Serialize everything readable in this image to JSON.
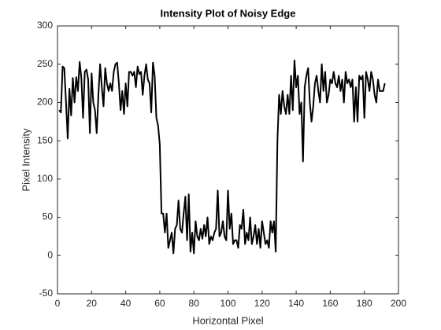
{
  "chart_data": {
    "type": "line",
    "title": "Intensity Plot of Noisy Edge",
    "xlabel": "Horizontal Pixel",
    "ylabel": "Pixel Intensity",
    "x": [
      1,
      2,
      3,
      4,
      5,
      6,
      7,
      8,
      9,
      10,
      11,
      12,
      13,
      14,
      15,
      16,
      17,
      18,
      19,
      20,
      21,
      22,
      23,
      24,
      25,
      26,
      27,
      28,
      29,
      30,
      31,
      32,
      33,
      34,
      35,
      36,
      37,
      38,
      39,
      40,
      41,
      42,
      43,
      44,
      45,
      46,
      47,
      48,
      49,
      50,
      51,
      52,
      53,
      54,
      55,
      56,
      57,
      58,
      59,
      60,
      61,
      62,
      63,
      64,
      65,
      66,
      67,
      68,
      69,
      70,
      71,
      72,
      73,
      74,
      75,
      76,
      77,
      78,
      79,
      80,
      81,
      82,
      83,
      84,
      85,
      86,
      87,
      88,
      89,
      90,
      91,
      92,
      93,
      94,
      95,
      96,
      97,
      98,
      99,
      100,
      101,
      102,
      103,
      104,
      105,
      106,
      107,
      108,
      109,
      110,
      111,
      112,
      113,
      114,
      115,
      116,
      117,
      118,
      119,
      120,
      121,
      122,
      123,
      124,
      125,
      126,
      127,
      128,
      129,
      130,
      131,
      132,
      133,
      134,
      135,
      136,
      137,
      138,
      139,
      140,
      141,
      142,
      143,
      144,
      145,
      146,
      147,
      148,
      149,
      150,
      151,
      152,
      153,
      154,
      155,
      156,
      157,
      158,
      159,
      160,
      161,
      162,
      163,
      164,
      165,
      166,
      167,
      168,
      169,
      170,
      171,
      172,
      173,
      174,
      175,
      176,
      177,
      178,
      179,
      180,
      181,
      182,
      183,
      184,
      185,
      186,
      187,
      188,
      189,
      190,
      191,
      192
    ],
    "series": [
      {
        "color": "#000000",
        "values": [
          190,
          187,
          247,
          245,
          200,
          153,
          218,
          183,
          232,
          200,
          233,
          215,
          253,
          232,
          180,
          240,
          243,
          230,
          160,
          238,
          200,
          190,
          160,
          210,
          250,
          220,
          195,
          245,
          225,
          215,
          225,
          215,
          240,
          250,
          252,
          225,
          190,
          215,
          185,
          225,
          195,
          240,
          240,
          235,
          240,
          220,
          247,
          237,
          240,
          210,
          235,
          250,
          230,
          225,
          187,
          252,
          235,
          180,
          170,
          145,
          55,
          55,
          30,
          55,
          10,
          20,
          30,
          3,
          35,
          40,
          72,
          35,
          30,
          55,
          77,
          20,
          80,
          5,
          30,
          3,
          45,
          25,
          20,
          35,
          22,
          40,
          25,
          50,
          15,
          25,
          20,
          30,
          35,
          85,
          25,
          30,
          45,
          25,
          20,
          85,
          35,
          55,
          15,
          20,
          20,
          10,
          40,
          35,
          60,
          15,
          30,
          20,
          50,
          15,
          25,
          40,
          15,
          35,
          10,
          45,
          30,
          15,
          20,
          10,
          45,
          30,
          45,
          5,
          150,
          210,
          185,
          215,
          195,
          185,
          210,
          185,
          235,
          190,
          255,
          220,
          235,
          185,
          200,
          123,
          220,
          235,
          245,
          200,
          175,
          195,
          225,
          235,
          215,
          200,
          250,
          215,
          240,
          200,
          210,
          230,
          225,
          240,
          225,
          220,
          235,
          215,
          230,
          200,
          240,
          225,
          230,
          220,
          230,
          175,
          220,
          175,
          235,
          230,
          235,
          180,
          240,
          230,
          215,
          240,
          230,
          210,
          200,
          230,
          215,
          215,
          215,
          225
        ]
      }
    ],
    "xlim": [
      0,
      200
    ],
    "xticks": [
      0,
      20,
      40,
      60,
      80,
      100,
      120,
      140,
      160,
      180,
      200
    ],
    "ylim": [
      -50,
      300
    ],
    "yticks": [
      -50,
      0,
      50,
      100,
      150,
      200,
      250,
      300
    ]
  }
}
